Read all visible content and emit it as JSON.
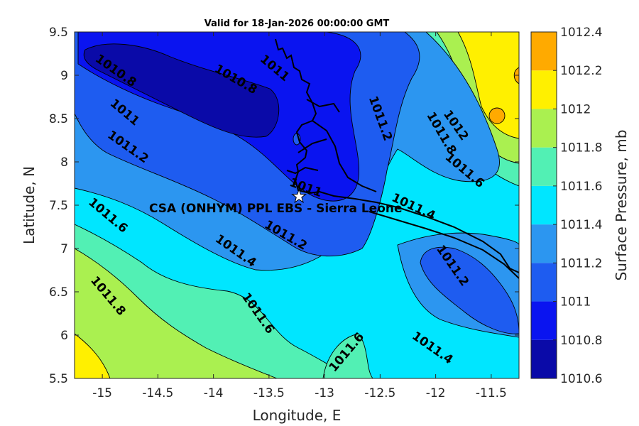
{
  "title": "Valid for 18-Jan-2026 00:00:00 GMT",
  "xlabel": "Longitude, E",
  "ylabel": "Latitude, N",
  "colorbar_label": "Surface Pressure, mb",
  "site_label": "CSA (ONHYM) PPL EBS  - Sierra Leone",
  "site_marker": "star-icon",
  "chart_data": {
    "type": "contour",
    "variable": "surface pressure",
    "units": "mb",
    "xlim": [
      -15.25,
      -11.25
    ],
    "ylim": [
      5.5,
      9.5
    ],
    "x_ticks": [
      -15,
      -14.5,
      -14,
      -13.5,
      -13,
      -12.5,
      -12,
      -11.5
    ],
    "x_tick_labels": [
      "-15",
      "-14.5",
      "-14",
      "-13.5",
      "-13",
      "-12.5",
      "-12",
      "-11.5"
    ],
    "y_ticks": [
      5.5,
      6,
      6.5,
      7,
      7.5,
      8,
      8.5,
      9,
      9.5
    ],
    "y_tick_labels": [
      "5.5",
      "6",
      "6.5",
      "7",
      "7.5",
      "8",
      "8.5",
      "9",
      "9.5"
    ],
    "site": {
      "lon": -13.23,
      "lat": 7.6
    },
    "colorbar": {
      "levels": [
        1010.6,
        1010.8,
        1011,
        1011.2,
        1011.4,
        1011.6,
        1011.8,
        1012,
        1012.2,
        1012.4
      ],
      "labels": [
        "1010.6",
        "1010.8",
        "1011",
        "1011.2",
        "1011.4",
        "1011.6",
        "1011.8",
        "1012",
        "1012.2",
        "1012.4"
      ],
      "colors": [
        "#0a0aa8",
        "#0a14f0",
        "#1e5cf0",
        "#2c96f0",
        "#00e6ff",
        "#52f0b4",
        "#aaf050",
        "#fff000",
        "#ffaa00",
        "#ff5a00"
      ]
    },
    "contour_labels": [
      {
        "text": "1010.8",
        "lon": -14.88,
        "lat": 9.05,
        "angle": 35
      },
      {
        "text": "1010.8",
        "lon": -13.8,
        "lat": 8.95,
        "angle": 30
      },
      {
        "text": "1011",
        "lon": -14.8,
        "lat": 8.57,
        "angle": 40
      },
      {
        "text": "1011",
        "lon": -13.45,
        "lat": 9.08,
        "angle": 40
      },
      {
        "text": "1011",
        "lon": -13.17,
        "lat": 7.7,
        "angle": 20
      },
      {
        "text": "1011.2",
        "lon": -14.77,
        "lat": 8.17,
        "angle": 35
      },
      {
        "text": "1011.2",
        "lon": -12.5,
        "lat": 8.5,
        "angle": 70
      },
      {
        "text": "1011.2",
        "lon": -13.35,
        "lat": 7.15,
        "angle": 30
      },
      {
        "text": "1011.2",
        "lon": -11.85,
        "lat": 6.8,
        "angle": 55
      },
      {
        "text": "1011.4",
        "lon": -12.2,
        "lat": 7.48,
        "angle": 25
      },
      {
        "text": "1011.4",
        "lon": -13.8,
        "lat": 6.97,
        "angle": 35
      },
      {
        "text": "1011.4",
        "lon": -12.03,
        "lat": 5.85,
        "angle": 35
      },
      {
        "text": "1011.6",
        "lon": -14.95,
        "lat": 7.38,
        "angle": 40
      },
      {
        "text": "1011.6",
        "lon": -11.74,
        "lat": 7.9,
        "angle": 40
      },
      {
        "text": "1011.6",
        "lon": -13.6,
        "lat": 6.25,
        "angle": 55
      },
      {
        "text": "1011.6",
        "lon": -12.8,
        "lat": 5.8,
        "angle": -50
      },
      {
        "text": "1011.8",
        "lon": -14.95,
        "lat": 6.45,
        "angle": 50
      },
      {
        "text": "1011.8",
        "lon": -11.95,
        "lat": 8.33,
        "angle": 60
      },
      {
        "text": "1012",
        "lon": -11.82,
        "lat": 8.42,
        "angle": 55
      }
    ]
  }
}
